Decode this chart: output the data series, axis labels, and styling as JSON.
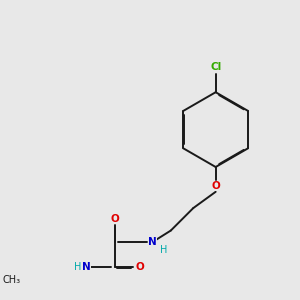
{
  "background_color": "#e8e8e8",
  "bond_color": "#1a1a1a",
  "atom_colors": {
    "O": "#e00000",
    "N": "#0000cc",
    "Cl": "#33aa00",
    "C": "#1a1a1a",
    "H": "#00aaaa"
  },
  "figsize": [
    3.0,
    3.0
  ],
  "dpi": 100,
  "lw": 1.4,
  "fs": 7.5
}
